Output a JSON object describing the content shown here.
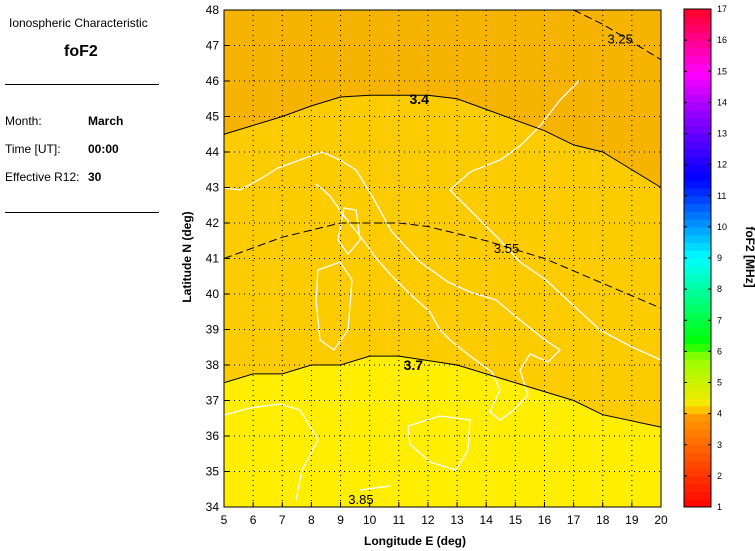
{
  "info": {
    "heading": "Ionospheric Characteristic",
    "characteristic": "foF2",
    "rows": [
      {
        "label": "Month:",
        "value": "March"
      },
      {
        "label": "Time [UT]:",
        "value": "00:00"
      },
      {
        "label": "Effective R12:",
        "value": "30"
      }
    ]
  },
  "map": {
    "xlabel": "Longitude E (deg)",
    "ylabel": "Latitude N (deg)",
    "xlim": [
      5,
      20
    ],
    "ylim": [
      34,
      48
    ],
    "xticks": [
      "5",
      "6",
      "7",
      "8",
      "9",
      "10",
      "11",
      "12",
      "13",
      "14",
      "15",
      "16",
      "17",
      "18",
      "19",
      "20"
    ],
    "yticks": [
      "34",
      "35",
      "36",
      "37",
      "38",
      "39",
      "40",
      "41",
      "42",
      "43",
      "44",
      "45",
      "46",
      "47",
      "48"
    ],
    "grid": true,
    "region_colors": {
      "above_3.4": "#f6b400",
      "3.4_to_3.7": "#fccc00",
      "below_3.7": "#ffee00"
    },
    "coastline_color": "#ffffff",
    "contours": [
      {
        "label": "3.25",
        "style": "dashed",
        "points": [
          [
            17,
            48
          ],
          [
            18,
            47.6
          ],
          [
            19,
            47.1
          ],
          [
            20,
            46.6
          ]
        ],
        "label_at": [
          18.6,
          47.2
        ]
      },
      {
        "label": "3.4",
        "style": "solid",
        "points": [
          [
            5,
            44.5
          ],
          [
            7,
            45
          ],
          [
            8,
            45.3
          ],
          [
            9,
            45.55
          ],
          [
            10,
            45.6
          ],
          [
            12,
            45.6
          ],
          [
            13,
            45.5
          ],
          [
            14,
            45.2
          ],
          [
            15,
            44.9
          ],
          [
            16,
            44.6
          ],
          [
            17,
            44.2
          ],
          [
            18,
            44
          ],
          [
            19,
            43.5
          ],
          [
            20,
            43
          ]
        ],
        "label_at": [
          11.7,
          45.5
        ]
      },
      {
        "label": "3.55",
        "style": "dashed",
        "points": [
          [
            5,
            41
          ],
          [
            7,
            41.6
          ],
          [
            9,
            42
          ],
          [
            11,
            42
          ],
          [
            12,
            41.9
          ],
          [
            14,
            41.5
          ],
          [
            16,
            41
          ],
          [
            18,
            40.3
          ],
          [
            20,
            39.6
          ]
        ],
        "label_at": [
          14.7,
          41.3
        ]
      },
      {
        "label": "3.7",
        "style": "solid",
        "points": [
          [
            5,
            37.5
          ],
          [
            6,
            37.75
          ],
          [
            7,
            37.75
          ],
          [
            8,
            38
          ],
          [
            9,
            38
          ],
          [
            10,
            38.25
          ],
          [
            11,
            38.25
          ],
          [
            13,
            38
          ],
          [
            14,
            37.75
          ],
          [
            15,
            37.5
          ],
          [
            16,
            37.25
          ],
          [
            17,
            37
          ],
          [
            18,
            36.6
          ],
          [
            20,
            36.25
          ]
        ],
        "label_at": [
          11.5,
          38
        ]
      },
      {
        "label": "3.85",
        "style": "dashed",
        "points": [],
        "label_at": [
          9.7,
          33.9
        ]
      }
    ]
  },
  "colorbar": {
    "label": "foF2 [MHz]",
    "range": [
      1,
      17
    ],
    "ticks": [
      "1",
      "2",
      "3",
      "4",
      "5",
      "6",
      "7",
      "8",
      "9",
      "10",
      "11",
      "12",
      "13",
      "14",
      "15",
      "16",
      "17"
    ]
  }
}
